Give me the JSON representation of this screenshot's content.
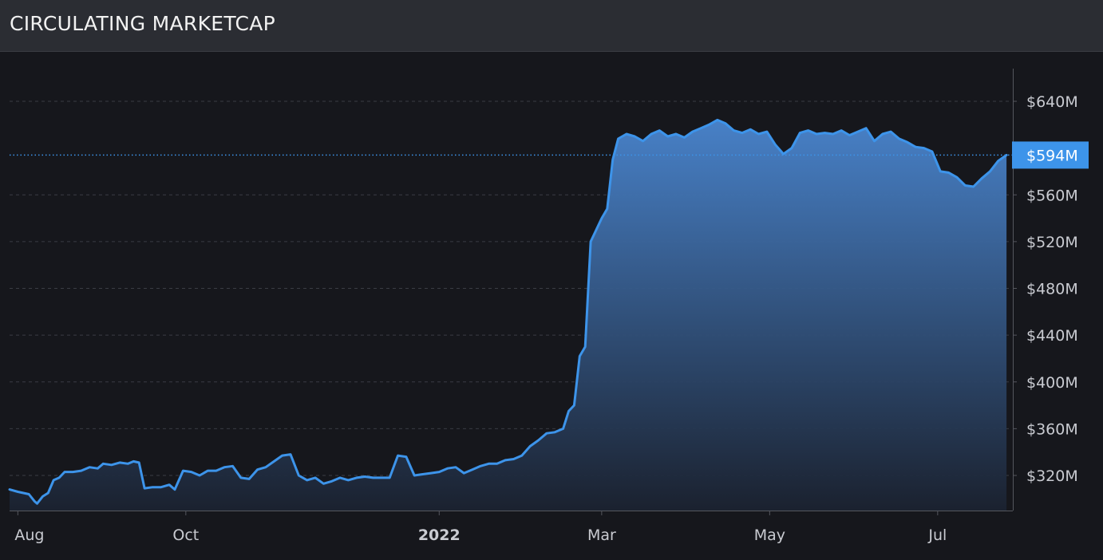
{
  "header": {
    "title": "CIRCULATING MARKETCAP"
  },
  "colors": {
    "line": "#3d94ea",
    "area_top": "#4a86d0",
    "area_bottom": "#1b2230",
    "grid": "#3a3c44",
    "axis_text": "#c9cbd1",
    "last_value_badge": "#3d94ea",
    "background": "#16171c"
  },
  "chart_data": {
    "type": "area",
    "title": "CIRCULATING MARKETCAP",
    "xlabel": "",
    "ylabel": "",
    "x_ticks": [
      {
        "label": "Aug",
        "date": "2021-08-01"
      },
      {
        "label": "Oct",
        "date": "2021-10-01"
      },
      {
        "label": "2022",
        "date": "2022-01-01"
      },
      {
        "label": "Mar",
        "date": "2022-03-01"
      },
      {
        "label": "May",
        "date": "2022-05-01"
      },
      {
        "label": "Jul",
        "date": "2022-07-01"
      }
    ],
    "y_ticks": [
      {
        "label": "$320M",
        "value": 320
      },
      {
        "label": "$360M",
        "value": 360
      },
      {
        "label": "$400M",
        "value": 400
      },
      {
        "label": "$440M",
        "value": 440
      },
      {
        "label": "$480M",
        "value": 480
      },
      {
        "label": "$520M",
        "value": 520
      },
      {
        "label": "$560M",
        "value": 560
      },
      {
        "label": "$640M",
        "value": 640
      }
    ],
    "last_value": {
      "label": "$594M",
      "value": 594
    },
    "y_unit": "millions USD",
    "ylim": [
      290,
      675
    ],
    "xlim": [
      "2021-07-29",
      "2022-07-28"
    ],
    "grid": "horizontal-dashed",
    "series": [
      {
        "points": [
          [
            "2021-07-29",
            308
          ],
          [
            "2021-08-01",
            306
          ],
          [
            "2021-08-05",
            304
          ],
          [
            "2021-08-07",
            298
          ],
          [
            "2021-08-08",
            296
          ],
          [
            "2021-08-10",
            302
          ],
          [
            "2021-08-12",
            305
          ],
          [
            "2021-08-14",
            316
          ],
          [
            "2021-08-16",
            318
          ],
          [
            "2021-08-18",
            323
          ],
          [
            "2021-08-21",
            323
          ],
          [
            "2021-08-24",
            324
          ],
          [
            "2021-08-27",
            327
          ],
          [
            "2021-08-30",
            326
          ],
          [
            "2021-09-01",
            330
          ],
          [
            "2021-09-04",
            329
          ],
          [
            "2021-09-07",
            331
          ],
          [
            "2021-09-10",
            330
          ],
          [
            "2021-09-12",
            332
          ],
          [
            "2021-09-14",
            331
          ],
          [
            "2021-09-16",
            309
          ],
          [
            "2021-09-19",
            310
          ],
          [
            "2021-09-22",
            310
          ],
          [
            "2021-09-25",
            312
          ],
          [
            "2021-09-27",
            308
          ],
          [
            "2021-09-30",
            324
          ],
          [
            "2021-10-03",
            323
          ],
          [
            "2021-10-06",
            320
          ],
          [
            "2021-10-09",
            324
          ],
          [
            "2021-10-12",
            324
          ],
          [
            "2021-10-15",
            327
          ],
          [
            "2021-10-18",
            328
          ],
          [
            "2021-10-21",
            318
          ],
          [
            "2021-10-24",
            317
          ],
          [
            "2021-10-27",
            325
          ],
          [
            "2021-10-30",
            327
          ],
          [
            "2021-11-02",
            332
          ],
          [
            "2021-11-05",
            337
          ],
          [
            "2021-11-08",
            338
          ],
          [
            "2021-11-11",
            320
          ],
          [
            "2021-11-14",
            316
          ],
          [
            "2021-11-17",
            318
          ],
          [
            "2021-11-20",
            313
          ],
          [
            "2021-11-23",
            315
          ],
          [
            "2021-11-26",
            318
          ],
          [
            "2021-11-29",
            316
          ],
          [
            "2021-12-02",
            318
          ],
          [
            "2021-12-05",
            319
          ],
          [
            "2021-12-08",
            318
          ],
          [
            "2021-12-11",
            318
          ],
          [
            "2021-12-14",
            318
          ],
          [
            "2021-12-17",
            337
          ],
          [
            "2021-12-20",
            336
          ],
          [
            "2021-12-23",
            320
          ],
          [
            "2021-12-26",
            321
          ],
          [
            "2021-12-29",
            322
          ],
          [
            "2022-01-01",
            323
          ],
          [
            "2022-01-04",
            326
          ],
          [
            "2022-01-07",
            327
          ],
          [
            "2022-01-10",
            322
          ],
          [
            "2022-01-13",
            325
          ],
          [
            "2022-01-16",
            328
          ],
          [
            "2022-01-19",
            330
          ],
          [
            "2022-01-22",
            330
          ],
          [
            "2022-01-25",
            333
          ],
          [
            "2022-01-28",
            334
          ],
          [
            "2022-01-31",
            337
          ],
          [
            "2022-02-03",
            345
          ],
          [
            "2022-02-06",
            350
          ],
          [
            "2022-02-09",
            356
          ],
          [
            "2022-02-12",
            357
          ],
          [
            "2022-02-15",
            360
          ],
          [
            "2022-02-17",
            375
          ],
          [
            "2022-02-19",
            380
          ],
          [
            "2022-02-21",
            422
          ],
          [
            "2022-02-23",
            430
          ],
          [
            "2022-02-25",
            520
          ],
          [
            "2022-02-27",
            530
          ],
          [
            "2022-03-01",
            540
          ],
          [
            "2022-03-03",
            548
          ],
          [
            "2022-03-05",
            590
          ],
          [
            "2022-03-07",
            608
          ],
          [
            "2022-03-10",
            612
          ],
          [
            "2022-03-13",
            610
          ],
          [
            "2022-03-16",
            606
          ],
          [
            "2022-03-19",
            612
          ],
          [
            "2022-03-22",
            615
          ],
          [
            "2022-03-25",
            610
          ],
          [
            "2022-03-28",
            612
          ],
          [
            "2022-03-31",
            609
          ],
          [
            "2022-04-03",
            614
          ],
          [
            "2022-04-06",
            617
          ],
          [
            "2022-04-09",
            620
          ],
          [
            "2022-04-12",
            624
          ],
          [
            "2022-04-15",
            621
          ],
          [
            "2022-04-18",
            615
          ],
          [
            "2022-04-21",
            613
          ],
          [
            "2022-04-24",
            616
          ],
          [
            "2022-04-27",
            612
          ],
          [
            "2022-04-30",
            614
          ],
          [
            "2022-05-03",
            603
          ],
          [
            "2022-05-06",
            595
          ],
          [
            "2022-05-09",
            600
          ],
          [
            "2022-05-12",
            613
          ],
          [
            "2022-05-15",
            615
          ],
          [
            "2022-05-18",
            612
          ],
          [
            "2022-05-21",
            613
          ],
          [
            "2022-05-24",
            612
          ],
          [
            "2022-05-27",
            615
          ],
          [
            "2022-05-30",
            611
          ],
          [
            "2022-06-02",
            614
          ],
          [
            "2022-06-05",
            617
          ],
          [
            "2022-06-08",
            606
          ],
          [
            "2022-06-11",
            612
          ],
          [
            "2022-06-14",
            614
          ],
          [
            "2022-06-17",
            608
          ],
          [
            "2022-06-20",
            605
          ],
          [
            "2022-06-23",
            601
          ],
          [
            "2022-06-26",
            600
          ],
          [
            "2022-06-29",
            597
          ],
          [
            "2022-07-02",
            580
          ],
          [
            "2022-07-05",
            579
          ],
          [
            "2022-07-08",
            575
          ],
          [
            "2022-07-11",
            568
          ],
          [
            "2022-07-14",
            567
          ],
          [
            "2022-07-17",
            574
          ],
          [
            "2022-07-20",
            580
          ],
          [
            "2022-07-23",
            589
          ],
          [
            "2022-07-26",
            594
          ]
        ]
      }
    ]
  }
}
